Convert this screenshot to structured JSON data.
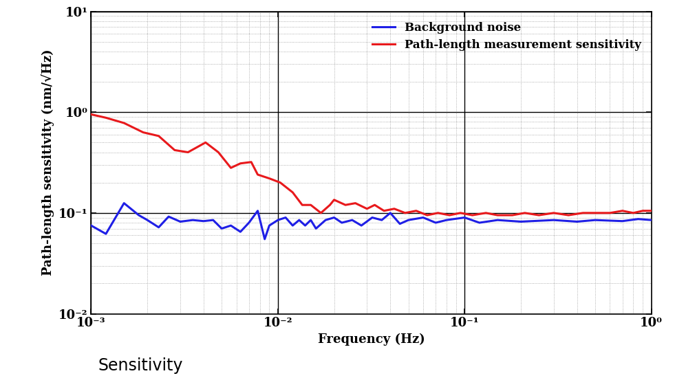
{
  "chart_data": {
    "type": "line",
    "x_label": "Frequency (Hz)",
    "y_label": "Path-length sensitivity (nm/√Hz)",
    "annotations": [
      "Sensitivity"
    ],
    "log": true,
    "grid": true,
    "legend": "upper right",
    "xlim": [
      0.001,
      1
    ],
    "ylim": [
      0.01,
      10
    ],
    "xticks": [
      {
        "value": 0.001,
        "label": "10⁻³"
      },
      {
        "value": 0.01,
        "label": "10⁻²"
      },
      {
        "value": 0.1,
        "label": "10⁻¹"
      },
      {
        "value": 1,
        "label": "10⁰"
      }
    ],
    "yticks": [
      {
        "value": 0.01,
        "label": "10⁻²"
      },
      {
        "value": 0.1,
        "label": "10⁻¹"
      },
      {
        "value": 1,
        "label": "10⁰"
      },
      {
        "value": 10,
        "label": "10¹"
      }
    ],
    "series": [
      {
        "name": "Background noise",
        "color": "#1f1fe6",
        "line_style": "solid",
        "x": [
          0.001,
          0.0012,
          0.0015,
          0.0018,
          0.002,
          0.0023,
          0.0026,
          0.003,
          0.0035,
          0.004,
          0.0045,
          0.005,
          0.0056,
          0.0063,
          0.007,
          0.0078,
          0.0085,
          0.009,
          0.01,
          0.011,
          0.012,
          0.013,
          0.014,
          0.015,
          0.016,
          0.018,
          0.02,
          0.022,
          0.025,
          0.028,
          0.032,
          0.036,
          0.04,
          0.045,
          0.05,
          0.06,
          0.07,
          0.08,
          0.1,
          0.12,
          0.15,
          0.2,
          0.3,
          0.4,
          0.5,
          0.7,
          0.85,
          1.0
        ],
        "values": [
          0.075,
          0.062,
          0.125,
          0.095,
          0.085,
          0.072,
          0.092,
          0.082,
          0.085,
          0.083,
          0.085,
          0.07,
          0.075,
          0.065,
          0.08,
          0.105,
          0.055,
          0.075,
          0.085,
          0.09,
          0.075,
          0.085,
          0.075,
          0.085,
          0.07,
          0.085,
          0.09,
          0.08,
          0.085,
          0.075,
          0.09,
          0.085,
          0.1,
          0.078,
          0.085,
          0.09,
          0.08,
          0.085,
          0.09,
          0.08,
          0.085,
          0.082,
          0.085,
          0.082,
          0.085,
          0.083,
          0.087,
          0.085
        ]
      },
      {
        "name": "Path-length measurement sensitivity",
        "color": "#e8191c",
        "line_style": "solid",
        "x": [
          0.001,
          0.0012,
          0.0015,
          0.0019,
          0.0023,
          0.0028,
          0.0033,
          0.0041,
          0.0048,
          0.0056,
          0.0063,
          0.0072,
          0.0078,
          0.009,
          0.0103,
          0.012,
          0.0135,
          0.015,
          0.017,
          0.019,
          0.02,
          0.023,
          0.026,
          0.03,
          0.033,
          0.037,
          0.042,
          0.048,
          0.055,
          0.063,
          0.072,
          0.083,
          0.095,
          0.11,
          0.13,
          0.15,
          0.18,
          0.21,
          0.25,
          0.3,
          0.36,
          0.43,
          0.5,
          0.6,
          0.7,
          0.8,
          0.9,
          1.0
        ],
        "values": [
          0.95,
          0.88,
          0.78,
          0.63,
          0.58,
          0.42,
          0.4,
          0.5,
          0.4,
          0.28,
          0.31,
          0.32,
          0.24,
          0.22,
          0.2,
          0.16,
          0.12,
          0.12,
          0.1,
          0.12,
          0.135,
          0.12,
          0.125,
          0.11,
          0.12,
          0.105,
          0.11,
          0.1,
          0.105,
          0.095,
          0.1,
          0.095,
          0.1,
          0.095,
          0.1,
          0.095,
          0.095,
          0.1,
          0.095,
          0.1,
          0.095,
          0.1,
          0.1,
          0.1,
          0.105,
          0.1,
          0.105,
          0.105
        ]
      }
    ]
  }
}
